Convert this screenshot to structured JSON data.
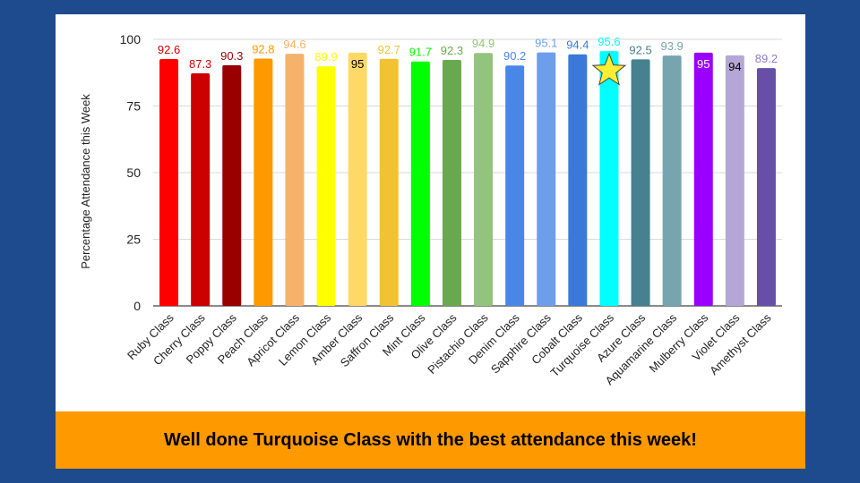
{
  "banner": {
    "text": "Well done Turquoise Class with the best attendance this week!"
  },
  "chart_data": {
    "type": "bar",
    "ylabel": "Percentage Attendance this Week",
    "xlabel": "",
    "ylim": [
      0,
      100
    ],
    "yticks": [
      0,
      25,
      50,
      75,
      100
    ],
    "grid": true,
    "legend": "none",
    "highlight": {
      "category": "Turquoise Class",
      "marker": "star-icon",
      "color": "#ffee33"
    },
    "categories": [
      "Ruby Class",
      "Cherry Class",
      "Poppy Class",
      "Peach Class",
      "Apricot Class",
      "Lemon Class",
      "Amber Class",
      "Saffron Class",
      "Mint Class",
      "Olive Class",
      "Pistachio Class",
      "Denim Class",
      "Sapphire Class",
      "Cobalt Class",
      "Turquoise Class",
      "Azure Class",
      "Aquamarine Class",
      "Mulberry Class",
      "Violet Class",
      "Amethyst Class"
    ],
    "values": [
      92.6,
      87.3,
      90.3,
      92.8,
      94.6,
      89.9,
      95,
      92.7,
      91.7,
      92.3,
      94.9,
      90.2,
      95.1,
      94.4,
      95.6,
      92.5,
      93.9,
      95,
      94,
      89.2
    ],
    "labels": [
      "92.6",
      "87.3",
      "90.3",
      "92.8",
      "94.6",
      "89.9",
      "95",
      "92.7",
      "91.7",
      "92.3",
      "94.9",
      "90.2",
      "95.1",
      "94.4",
      "95.6",
      "92.5",
      "93.9",
      "95",
      "94",
      "89.2"
    ],
    "colors": [
      "#ff0000",
      "#cc0000",
      "#990000",
      "#ff9900",
      "#f6b26b",
      "#ffff00",
      "#ffd966",
      "#f1c232",
      "#00ff00",
      "#6aa84f",
      "#93c47d",
      "#4a86e8",
      "#6d9eeb",
      "#3c78d8",
      "#00ffff",
      "#45818e",
      "#76a5af",
      "#9900ff",
      "#b4a7d6",
      "#674ea7"
    ],
    "label_colors": [
      "#cc0000",
      "#cc0000",
      "#990000",
      "#ff9900",
      "#f6b26b",
      "#ffff00",
      "#000000",
      "#f1c232",
      "#00ff00",
      "#6aa84f",
      "#93c47d",
      "#4a86e8",
      "#6d9eeb",
      "#3c78d8",
      "#00ffff",
      "#45818e",
      "#76a5af",
      "#ffffff",
      "#000000",
      "#8e7cc3"
    ],
    "label_inside": [
      false,
      false,
      false,
      false,
      false,
      false,
      true,
      false,
      false,
      false,
      false,
      false,
      false,
      false,
      false,
      false,
      false,
      true,
      true,
      false
    ]
  }
}
